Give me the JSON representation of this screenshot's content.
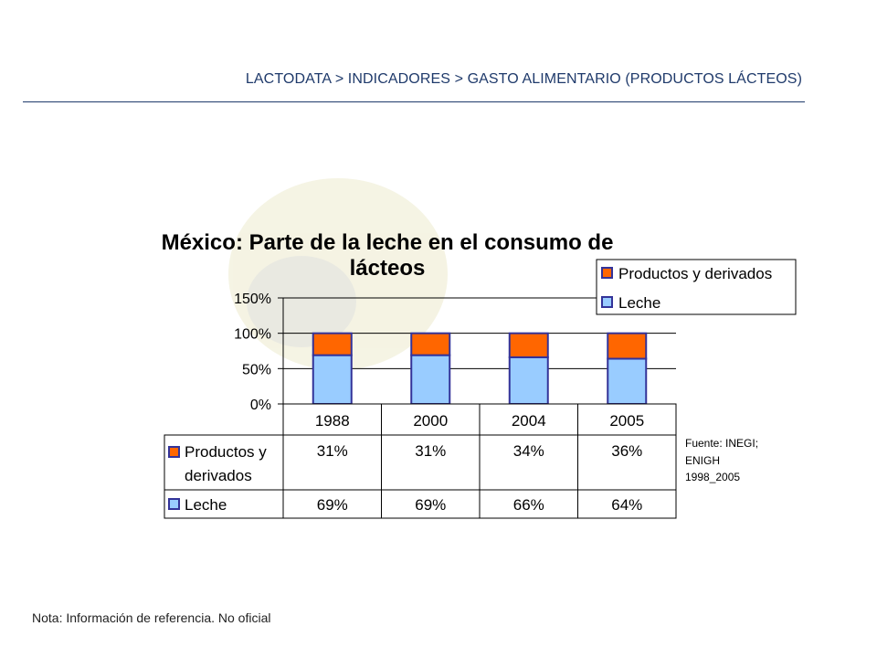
{
  "header": {
    "breadcrumb": "LACTODATA > INDICADORES > GASTO ALIMENTARIO (PRODUCTOS LÁCTEOS)"
  },
  "chart_data": {
    "type": "bar",
    "stacked": true,
    "title_line1": "México: Parte de la leche en el consumo de",
    "title_line2": "lácteos",
    "categories": [
      "1988",
      "2000",
      "2004",
      "2005"
    ],
    "ylim": [
      0,
      150
    ],
    "yticks": [
      "0%",
      "50%",
      "100%",
      "150%"
    ],
    "grid": true,
    "legend_position": "top-right",
    "series": [
      {
        "name": "Leche",
        "values": [
          69,
          69,
          66,
          64
        ],
        "labels": [
          "69%",
          "69%",
          "66%",
          "64%"
        ],
        "color": "#99ccff"
      },
      {
        "name": "Productos y derivados",
        "values": [
          31,
          31,
          34,
          36
        ],
        "labels": [
          "31%",
          "31%",
          "34%",
          "36%"
        ],
        "color": "#ff6600"
      }
    ],
    "table_labels": {
      "productos_line1": "Productos y",
      "productos_line2": "derivados",
      "leche": "Leche"
    },
    "source_lines": [
      "Fuente: INEGI;",
      "ENIGH",
      "1998_2005"
    ]
  },
  "footnote": "Nota:  Información de referencia. No oficial",
  "colors": {
    "outline": "#333399",
    "axis": "#000000",
    "header": "#1f3a6b"
  }
}
